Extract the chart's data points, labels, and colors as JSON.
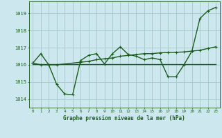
{
  "title": "Graphe pression niveau de la mer (hPa)",
  "background_color": "#cce8ee",
  "grid_color": "#aacccc",
  "line_color": "#1a5c1a",
  "xlim": [
    -0.5,
    23.5
  ],
  "ylim": [
    1013.5,
    1019.7
  ],
  "yticks": [
    1014,
    1015,
    1016,
    1017,
    1018,
    1019
  ],
  "xticks": [
    0,
    1,
    2,
    3,
    4,
    5,
    6,
    7,
    8,
    9,
    10,
    11,
    12,
    13,
    14,
    15,
    16,
    17,
    18,
    19,
    20,
    21,
    22,
    23
  ],
  "series1_x": [
    0,
    1,
    2,
    3,
    4,
    5,
    6,
    7,
    8,
    9,
    10,
    11,
    12,
    13,
    14,
    15,
    16,
    17,
    18,
    19,
    20,
    21,
    22,
    23
  ],
  "series1_y": [
    1016.1,
    1016.65,
    1016.0,
    1014.85,
    1014.3,
    1014.25,
    1016.25,
    1016.55,
    1016.65,
    1016.05,
    1016.65,
    1017.05,
    1016.6,
    1016.5,
    1016.3,
    1016.4,
    1016.3,
    1015.3,
    1015.3,
    1016.0,
    1016.8,
    1018.7,
    1019.15,
    1019.35
  ],
  "series2_x": [
    0,
    1,
    2,
    3,
    4,
    5,
    6,
    7,
    8,
    9,
    10,
    11,
    12,
    13,
    14,
    15,
    16,
    17,
    18,
    19,
    20,
    21,
    22,
    23
  ],
  "series2_y": [
    1016.05,
    1016.05,
    1016.05,
    1016.05,
    1016.05,
    1016.05,
    1016.05,
    1016.05,
    1016.05,
    1016.05,
    1016.05,
    1016.05,
    1016.05,
    1016.05,
    1016.05,
    1016.05,
    1016.05,
    1016.05,
    1016.05,
    1016.05,
    1016.05,
    1016.05,
    1016.05,
    1016.05
  ],
  "series3_x": [
    0,
    1,
    3,
    6,
    7,
    8,
    9,
    10,
    11,
    12,
    13,
    14,
    15,
    16,
    17,
    18,
    19,
    20,
    21,
    22,
    23
  ],
  "series3_y": [
    1016.1,
    1016.0,
    1016.0,
    1016.15,
    1016.2,
    1016.3,
    1016.35,
    1016.4,
    1016.5,
    1016.55,
    1016.6,
    1016.65,
    1016.65,
    1016.7,
    1016.72,
    1016.73,
    1016.75,
    1016.8,
    1016.85,
    1016.95,
    1017.05
  ]
}
